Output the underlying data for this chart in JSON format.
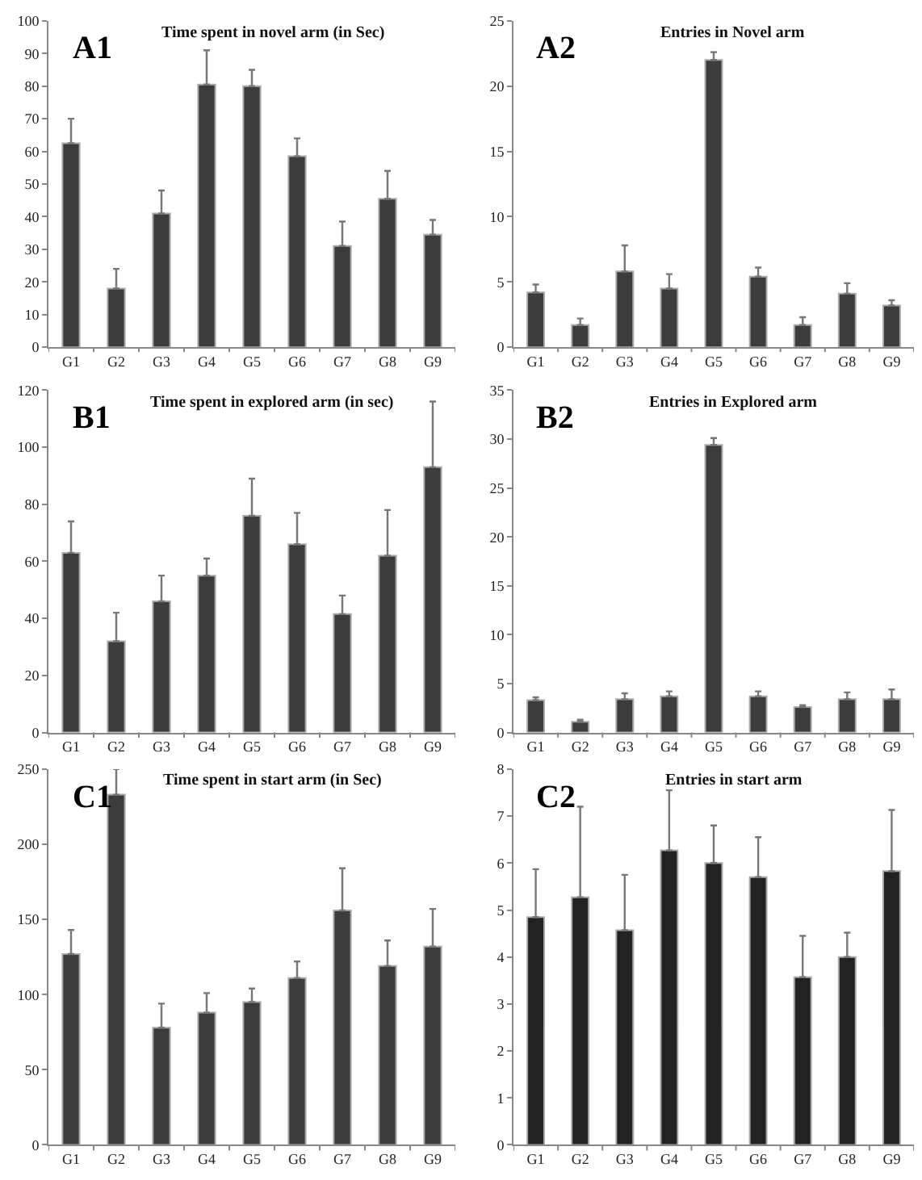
{
  "chart_data": [
    {
      "type": "bar",
      "title": "Time spent in novel arm (in Sec)",
      "annotations": [
        "A1"
      ],
      "categories": [
        "G1",
        "G2",
        "G3",
        "G4",
        "G5",
        "G6",
        "G7",
        "G8",
        "G9"
      ],
      "values": [
        62.5,
        18,
        41,
        80.5,
        80,
        58.5,
        31,
        45.5,
        34.5
      ],
      "errors": [
        [
          62.5,
          70
        ],
        [
          18,
          24
        ],
        [
          41,
          48
        ],
        [
          80.5,
          91
        ],
        [
          80,
          85
        ],
        [
          58.5,
          64
        ],
        [
          31,
          38.5
        ],
        [
          45.5,
          54
        ],
        [
          34.5,
          39
        ]
      ],
      "color": "#3c3c3c",
      "ylim": [
        0,
        100
      ],
      "yticks": [
        0,
        10,
        20,
        30,
        40,
        50,
        60,
        70,
        80,
        90,
        100
      ]
    },
    {
      "type": "bar",
      "title": "Entries in Novel arm",
      "annotations": [
        "A2"
      ],
      "categories": [
        "G1",
        "G2",
        "G3",
        "G4",
        "G5",
        "G6",
        "G7",
        "G8",
        "G9"
      ],
      "values": [
        4.2,
        1.7,
        5.8,
        4.5,
        22,
        5.4,
        1.7,
        4.1,
        3.2
      ],
      "errors": [
        [
          4.2,
          4.8
        ],
        [
          1.7,
          2.2
        ],
        [
          5.8,
          7.8
        ],
        [
          4.5,
          5.6
        ],
        [
          22,
          22.6
        ],
        [
          5.4,
          6.1
        ],
        [
          1.7,
          2.3
        ],
        [
          4.1,
          4.9
        ],
        [
          3.2,
          3.6
        ]
      ],
      "color": "#3c3c3c",
      "ylim": [
        0,
        25
      ],
      "yticks": [
        0,
        5,
        10,
        15,
        20,
        25
      ]
    },
    {
      "type": "bar",
      "title": "Time spent in explored arm (in sec)",
      "annotations": [
        "B1"
      ],
      "categories": [
        "G1",
        "G2",
        "G3",
        "G4",
        "G5",
        "G6",
        "G7",
        "G8",
        "G9"
      ],
      "values": [
        63,
        32,
        46,
        55,
        76,
        66,
        41.5,
        62,
        93
      ],
      "errors": [
        [
          63,
          74
        ],
        [
          32,
          42
        ],
        [
          46,
          55
        ],
        [
          55,
          61
        ],
        [
          76,
          89
        ],
        [
          66,
          77
        ],
        [
          41.5,
          48
        ],
        [
          62,
          78
        ],
        [
          93,
          116
        ]
      ],
      "color": "#3c3c3c",
      "ylim": [
        0,
        120
      ],
      "yticks": [
        0,
        20,
        40,
        60,
        80,
        100,
        120
      ]
    },
    {
      "type": "bar",
      "title": "Entries in Explored arm",
      "annotations": [
        "B2"
      ],
      "categories": [
        "G1",
        "G2",
        "G3",
        "G4",
        "G5",
        "G6",
        "G7",
        "G8",
        "G9"
      ],
      "values": [
        3.3,
        1.1,
        3.4,
        3.7,
        29.4,
        3.7,
        2.6,
        3.4,
        3.4
      ],
      "errors": [
        [
          3.3,
          3.6
        ],
        [
          1.1,
          1.3
        ],
        [
          3.4,
          4
        ],
        [
          3.7,
          4.2
        ],
        [
          29.4,
          30.1
        ],
        [
          3.7,
          4.2
        ],
        [
          2.6,
          2.8
        ],
        [
          3.4,
          4.1
        ],
        [
          3.4,
          4.4
        ]
      ],
      "color": "#3c3c3c",
      "ylim": [
        0,
        35
      ],
      "yticks": [
        0,
        5,
        10,
        15,
        20,
        25,
        30,
        35
      ]
    },
    {
      "type": "bar",
      "title": "Time spent in start arm (in Sec)",
      "annotations": [
        "C1"
      ],
      "categories": [
        "G1",
        "G2",
        "G3",
        "G4",
        "G5",
        "G6",
        "G7",
        "G8",
        "G9"
      ],
      "values": [
        127,
        233,
        78,
        88,
        95,
        111,
        156,
        119,
        132
      ],
      "errors": [
        [
          127,
          143
        ],
        [
          233,
          250
        ],
        [
          78,
          94
        ],
        [
          88,
          101
        ],
        [
          95,
          104
        ],
        [
          111,
          122
        ],
        [
          156,
          184
        ],
        [
          119,
          136
        ],
        [
          132,
          157
        ]
      ],
      "color": "#3c3c3c",
      "ylim": [
        0,
        250
      ],
      "yticks": [
        0,
        50,
        100,
        150,
        200,
        250
      ]
    },
    {
      "type": "bar",
      "title": "Entries in start arm",
      "annotations": [
        "C2"
      ],
      "categories": [
        "G1",
        "G2",
        "G3",
        "G4",
        "G5",
        "G6",
        "G7",
        "G8",
        "G9"
      ],
      "values": [
        4.85,
        5.27,
        4.57,
        6.27,
        6.0,
        5.7,
        3.57,
        4.0,
        5.83
      ],
      "errors": [
        [
          4.85,
          5.87
        ],
        [
          5.27,
          7.2
        ],
        [
          4.57,
          5.75
        ],
        [
          6.27,
          7.55
        ],
        [
          6.0,
          6.8
        ],
        [
          5.7,
          6.55
        ],
        [
          3.57,
          4.45
        ],
        [
          4.0,
          4.52
        ],
        [
          5.83,
          7.13
        ]
      ],
      "color": "#222222",
      "ylim": [
        0,
        8
      ],
      "yticks": [
        0,
        1,
        2,
        3,
        4,
        5,
        6,
        7,
        8
      ]
    }
  ]
}
